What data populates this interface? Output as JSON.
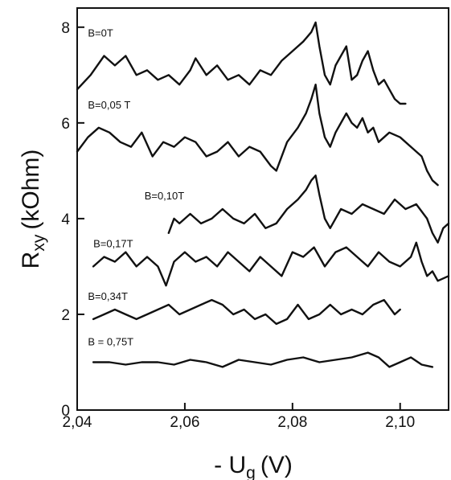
{
  "chart_data": {
    "type": "line",
    "title": "",
    "xlabel": "- U_g (V)",
    "xlabel_main": "- U",
    "xlabel_sub": "g",
    "xlabel_unit": "(V)",
    "ylabel": "R_xy (kOhm)",
    "ylabel_main": "R",
    "ylabel_sub": "xy",
    "ylabel_unit": "(kOhm)",
    "xlim": [
      2.04,
      2.109
    ],
    "ylim": [
      0,
      8.4
    ],
    "grid": false,
    "line_color": "#111111",
    "x_ticks": [
      {
        "value": 2.04,
        "label": "2,04"
      },
      {
        "value": 2.06,
        "label": "2,06"
      },
      {
        "value": 2.08,
        "label": "2,08"
      },
      {
        "value": 2.1,
        "label": "2,10"
      }
    ],
    "y_ticks": [
      {
        "value": 0,
        "label": "0"
      },
      {
        "value": 2,
        "label": "2"
      },
      {
        "value": 4,
        "label": "4"
      },
      {
        "value": 6,
        "label": "6"
      },
      {
        "value": 8,
        "label": "8"
      }
    ],
    "series": [
      {
        "name": "B=0T",
        "label_x": 2.042,
        "label_y": 7.8,
        "x": [
          2.04,
          2.0425,
          2.045,
          2.047,
          2.049,
          2.051,
          2.053,
          2.055,
          2.057,
          2.059,
          2.061,
          2.062,
          2.064,
          2.066,
          2.068,
          2.07,
          2.072,
          2.074,
          2.076,
          2.078,
          2.08,
          2.082,
          2.0835,
          2.0843,
          2.085,
          2.086,
          2.087,
          2.088,
          2.089,
          2.09,
          2.091,
          2.092,
          2.093,
          2.094,
          2.095,
          2.096,
          2.097,
          2.098,
          2.099,
          2.1,
          2.101
        ],
        "y": [
          6.7,
          7.0,
          7.4,
          7.2,
          7.4,
          7.0,
          7.1,
          6.9,
          7.0,
          6.8,
          7.1,
          7.35,
          7.0,
          7.2,
          6.9,
          7.0,
          6.8,
          7.1,
          7.0,
          7.3,
          7.5,
          7.7,
          7.9,
          8.1,
          7.6,
          7.0,
          6.8,
          7.2,
          7.4,
          7.6,
          6.9,
          7.0,
          7.3,
          7.5,
          7.1,
          6.8,
          6.9,
          6.7,
          6.5,
          6.4,
          6.4
        ]
      },
      {
        "name": "B=0,05 T",
        "label_x": 2.042,
        "label_y": 6.3,
        "x": [
          2.04,
          2.042,
          2.044,
          2.046,
          2.048,
          2.05,
          2.052,
          2.054,
          2.056,
          2.058,
          2.06,
          2.062,
          2.064,
          2.066,
          2.068,
          2.07,
          2.072,
          2.074,
          2.076,
          2.077,
          2.079,
          2.081,
          2.0825,
          2.0835,
          2.0843,
          2.085,
          2.086,
          2.087,
          2.088,
          2.089,
          2.09,
          2.091,
          2.092,
          2.093,
          2.094,
          2.095,
          2.096,
          2.098,
          2.1,
          2.102,
          2.104,
          2.105,
          2.106,
          2.107
        ],
        "y": [
          5.4,
          5.7,
          5.9,
          5.8,
          5.6,
          5.5,
          5.8,
          5.3,
          5.6,
          5.5,
          5.7,
          5.6,
          5.3,
          5.4,
          5.6,
          5.3,
          5.5,
          5.4,
          5.1,
          5.0,
          5.6,
          5.9,
          6.2,
          6.5,
          6.8,
          6.2,
          5.7,
          5.5,
          5.8,
          6.0,
          6.2,
          6.0,
          5.9,
          6.1,
          5.8,
          5.9,
          5.6,
          5.8,
          5.7,
          5.5,
          5.3,
          5.0,
          4.8,
          4.7
        ]
      },
      {
        "name": "B=0,10T",
        "label_x": 2.0525,
        "label_y": 4.4,
        "x": [
          2.057,
          2.058,
          2.059,
          2.061,
          2.063,
          2.065,
          2.067,
          2.069,
          2.071,
          2.073,
          2.075,
          2.077,
          2.079,
          2.081,
          2.0825,
          2.0835,
          2.0843,
          2.085,
          2.086,
          2.087,
          2.089,
          2.091,
          2.093,
          2.095,
          2.097,
          2.099,
          2.101,
          2.103,
          2.105,
          2.106,
          2.107,
          2.108,
          2.109
        ],
        "y": [
          3.7,
          4.0,
          3.9,
          4.1,
          3.9,
          4.0,
          4.2,
          4.0,
          3.9,
          4.1,
          3.8,
          3.9,
          4.2,
          4.4,
          4.6,
          4.8,
          4.9,
          4.5,
          4.0,
          3.8,
          4.2,
          4.1,
          4.3,
          4.2,
          4.1,
          4.4,
          4.2,
          4.3,
          4.0,
          3.7,
          3.5,
          3.8,
          3.9
        ]
      },
      {
        "name": "B=0,17T",
        "label_x": 2.043,
        "label_y": 3.4,
        "x": [
          2.043,
          2.045,
          2.047,
          2.049,
          2.051,
          2.053,
          2.055,
          2.0565,
          2.058,
          2.06,
          2.062,
          2.064,
          2.066,
          2.068,
          2.07,
          2.072,
          2.074,
          2.076,
          2.078,
          2.08,
          2.082,
          2.084,
          2.086,
          2.088,
          2.09,
          2.092,
          2.094,
          2.096,
          2.098,
          2.1,
          2.102,
          2.103,
          2.104,
          2.105,
          2.106,
          2.107,
          2.109
        ],
        "y": [
          3.0,
          3.2,
          3.1,
          3.3,
          3.0,
          3.2,
          3.0,
          2.6,
          3.1,
          3.3,
          3.1,
          3.2,
          3.0,
          3.3,
          3.1,
          2.9,
          3.2,
          3.0,
          2.8,
          3.3,
          3.2,
          3.4,
          3.0,
          3.3,
          3.4,
          3.2,
          3.0,
          3.3,
          3.1,
          3.0,
          3.2,
          3.5,
          3.1,
          2.8,
          2.9,
          2.7,
          2.8
        ]
      },
      {
        "name": "B=0,34T",
        "label_x": 2.042,
        "label_y": 2.3,
        "x": [
          2.043,
          2.045,
          2.047,
          2.049,
          2.051,
          2.053,
          2.055,
          2.057,
          2.059,
          2.061,
          2.063,
          2.065,
          2.067,
          2.069,
          2.071,
          2.073,
          2.075,
          2.077,
          2.079,
          2.081,
          2.083,
          2.085,
          2.087,
          2.089,
          2.091,
          2.093,
          2.095,
          2.097,
          2.099,
          2.1
        ],
        "y": [
          1.9,
          2.0,
          2.1,
          2.0,
          1.9,
          2.0,
          2.1,
          2.2,
          2.0,
          2.1,
          2.2,
          2.3,
          2.2,
          2.0,
          2.1,
          1.9,
          2.0,
          1.8,
          1.9,
          2.2,
          1.9,
          2.0,
          2.2,
          2.0,
          2.1,
          2.0,
          2.2,
          2.3,
          2.0,
          2.1
        ]
      },
      {
        "name": "B = 0,75T",
        "label_x": 2.042,
        "label_y": 1.35,
        "x": [
          2.043,
          2.046,
          2.049,
          2.052,
          2.055,
          2.058,
          2.061,
          2.064,
          2.067,
          2.07,
          2.073,
          2.076,
          2.079,
          2.082,
          2.085,
          2.088,
          2.091,
          2.094,
          2.096,
          2.098,
          2.1,
          2.102,
          2.104,
          2.106
        ],
        "y": [
          1.0,
          1.0,
          0.95,
          1.0,
          1.0,
          0.95,
          1.05,
          1.0,
          0.9,
          1.05,
          1.0,
          0.95,
          1.05,
          1.1,
          1.0,
          1.05,
          1.1,
          1.2,
          1.1,
          0.9,
          1.0,
          1.1,
          0.95,
          0.9
        ]
      }
    ]
  }
}
